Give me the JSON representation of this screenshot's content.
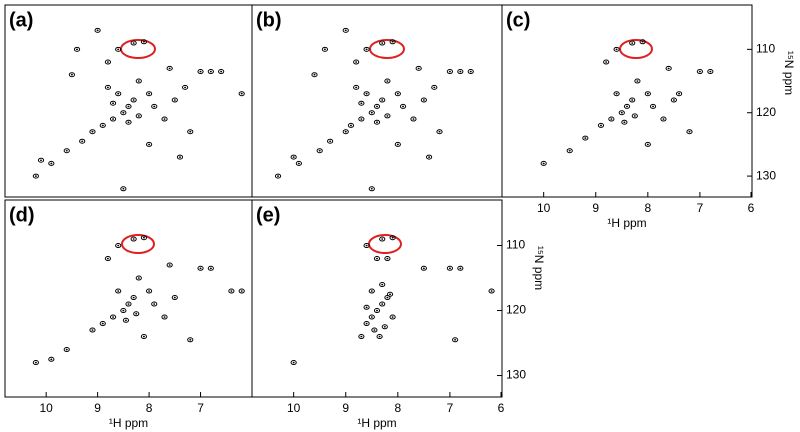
{
  "chart_data": [
    {
      "type": "scatter",
      "title": "(a)",
      "xlim": [
        10.8,
        6
      ],
      "ylim": [
        103,
        133.3
      ],
      "x": [
        9.9,
        10.1,
        9.6,
        9.3,
        9.1,
        8.9,
        8.7,
        8.5,
        8.4,
        8.3,
        8.6,
        8.8,
        8.2,
        8.0,
        7.9,
        7.7,
        7.5,
        7.3,
        7.0,
        6.8,
        6.6,
        7.6,
        8.3,
        8.1,
        8.6,
        9.0,
        9.4,
        8.8,
        7.2,
        8.0,
        9.5,
        7.4,
        8.5,
        10.2,
        6.2,
        8.4,
        8.2,
        8.7
      ],
      "y": [
        128,
        127.5,
        126,
        124.5,
        123,
        122,
        121,
        120,
        119,
        118,
        117,
        116,
        115,
        117,
        119,
        121,
        118,
        116,
        113.5,
        113.5,
        113.5,
        113,
        109,
        108.8,
        110,
        107,
        110,
        112,
        123,
        125,
        114,
        127,
        132,
        130,
        117,
        121.5,
        120.5,
        118.5
      ]
    },
    {
      "type": "scatter",
      "title": "(b)",
      "xlim": [
        10.8,
        6
      ],
      "ylim": [
        103,
        133.3
      ],
      "x": [
        9.9,
        10.0,
        9.5,
        9.3,
        9.0,
        8.9,
        8.7,
        8.5,
        8.4,
        8.3,
        8.6,
        8.8,
        8.2,
        8.0,
        7.9,
        7.7,
        7.5,
        7.3,
        7.0,
        6.8,
        6.6,
        7.6,
        8.3,
        8.1,
        8.6,
        9.0,
        9.4,
        8.8,
        7.2,
        8.0,
        9.6,
        7.4,
        8.5,
        10.3,
        8.4,
        8.2,
        8.7
      ],
      "y": [
        128,
        127,
        126,
        124.5,
        123,
        122,
        121,
        120,
        119,
        118,
        117,
        116,
        115,
        117,
        119,
        121,
        118,
        116,
        113.5,
        113.5,
        113.5,
        113,
        109,
        108.8,
        110,
        107,
        110,
        112,
        123,
        125,
        114,
        127,
        132,
        130,
        121.5,
        120.5,
        118.5
      ]
    },
    {
      "type": "scatter",
      "title": "(c)",
      "xlim": [
        10.8,
        6
      ],
      "ylim": [
        103,
        133.3
      ],
      "x": [
        10.0,
        9.5,
        9.2,
        8.9,
        8.7,
        8.5,
        8.4,
        8.3,
        8.6,
        8.2,
        8.0,
        7.9,
        7.7,
        7.5,
        7.0,
        6.8,
        7.6,
        8.3,
        8.1,
        8.6,
        8.8,
        7.2,
        8.0,
        8.45,
        8.25,
        7.4
      ],
      "y": [
        128,
        126,
        124,
        122,
        121,
        120,
        119,
        118,
        117,
        115,
        117,
        119,
        121,
        118,
        113.5,
        113.5,
        113,
        109,
        108.8,
        110,
        112,
        123,
        125,
        121.5,
        120.5,
        117
      ]
    },
    {
      "type": "scatter",
      "title": "(d)",
      "xlim": [
        10.8,
        6
      ],
      "ylim": [
        103,
        133.3
      ],
      "x": [
        10.2,
        9.9,
        9.6,
        9.1,
        8.9,
        8.7,
        8.5,
        8.4,
        8.3,
        8.6,
        8.2,
        8.0,
        7.9,
        7.7,
        7.5,
        7.0,
        6.8,
        7.6,
        8.3,
        8.1,
        8.6,
        8.8,
        7.2,
        8.45,
        8.25,
        6.2,
        6.4,
        8.1
      ],
      "y": [
        128,
        127.5,
        126,
        123,
        122,
        121,
        120,
        119,
        118,
        117,
        115,
        117,
        119,
        121,
        118,
        113.5,
        113.5,
        113,
        109,
        108.8,
        110,
        112,
        124.5,
        121.5,
        120.5,
        117,
        117,
        124
      ]
    },
    {
      "type": "scatter",
      "title": "(e)",
      "xlim": [
        10.8,
        6
      ],
      "ylim": [
        103,
        133.3
      ],
      "x": [
        10.0,
        8.6,
        8.5,
        8.4,
        8.3,
        8.2,
        8.1,
        8.45,
        8.35,
        8.25,
        8.6,
        8.5,
        8.3,
        8.15,
        7.0,
        6.8,
        7.5,
        8.3,
        8.1,
        8.6,
        6.9,
        6.2,
        8.4,
        8.2,
        8.7
      ],
      "y": [
        128,
        122,
        121,
        120,
        119,
        118,
        121,
        123,
        124,
        122.5,
        119.5,
        117,
        116,
        117.5,
        113.5,
        113.5,
        113.5,
        109,
        108.8,
        110,
        124.5,
        117,
        112,
        112,
        124
      ]
    }
  ],
  "axes": {
    "xticks_c": [
      10,
      9,
      8,
      7,
      6
    ],
    "xticks_d": [
      10,
      9,
      8,
      7
    ],
    "xticks_e": [
      10,
      9,
      8,
      7,
      6
    ],
    "yticks_c": [
      110,
      120,
      130
    ],
    "yticks_e": [
      110,
      120,
      130
    ],
    "xlabel_c": "¹H ppm",
    "xlabel_d": "¹H ppm",
    "xlabel_e": "¹H ppm",
    "ylabel_c": "¹⁵N ppm",
    "ylabel_e": "¹⁵N ppm"
  }
}
